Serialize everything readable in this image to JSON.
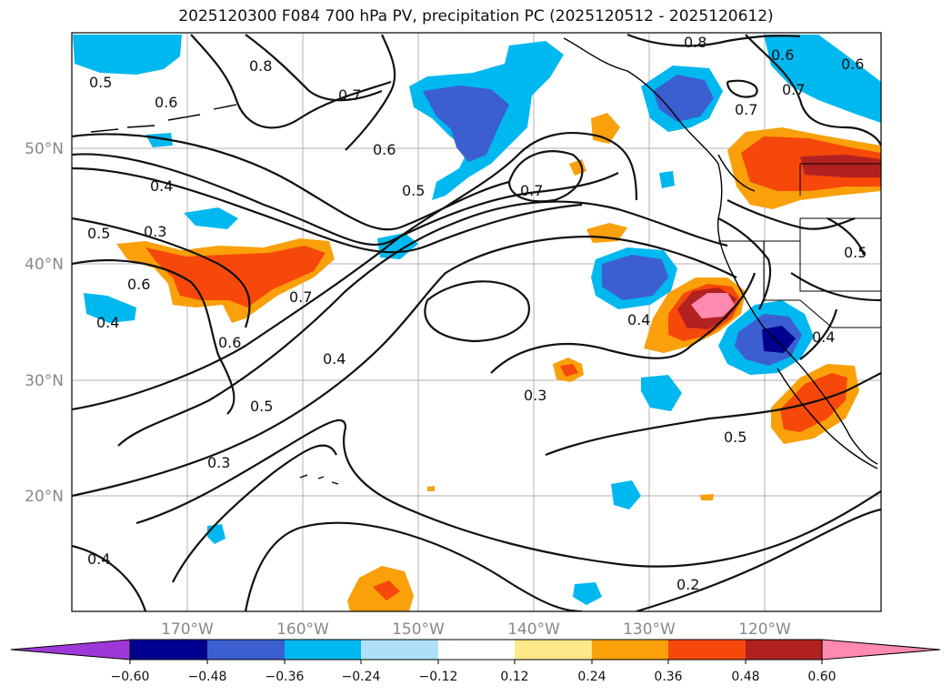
{
  "title": "2025120300 F084 700 hPa PV, precipitation PC (2025120512 - 2025120612)",
  "map": {
    "lat_range_deg": [
      10,
      60
    ],
    "lon_range_deg": [
      -180,
      -110
    ],
    "gridlines": true,
    "lat_labels": [
      "50°N",
      "40°N",
      "30°N",
      "20°N"
    ],
    "lon_labels": [
      "170°W",
      "160°W",
      "150°W",
      "140°W",
      "130°W",
      "120°W"
    ],
    "contour_labels": [
      "0.5",
      "0.6",
      "0.8",
      "0.7",
      "0.6",
      "0.5",
      "0.7",
      "0.4",
      "0.3",
      "0.5",
      "0.6",
      "0.7",
      "0.4",
      "0.6",
      "0.4",
      "0.5",
      "0.3",
      "0.3",
      "0.4",
      "0.5",
      "0.2",
      "0.4",
      "0.8",
      "0.6",
      "0.6",
      "0.7",
      "0.7",
      "0.4",
      "0.5"
    ],
    "colors": {
      "pos_1": "#fde88a",
      "pos_2": "#f9a00a",
      "pos_3": "#f6480a",
      "pos_4": "#b22121",
      "pos_5": "#ff8ab0",
      "neg_1": "#aee0f8",
      "neg_2": "#00b8f0",
      "neg_3": "#3b5fd0",
      "neg_4": "#000090",
      "neg_5": "#9f38d8"
    }
  },
  "colorbar": {
    "levels": [
      "−0.60",
      "−0.48",
      "−0.36",
      "−0.24",
      "−0.12",
      "0.12",
      "0.24",
      "0.36",
      "0.48",
      "0.60"
    ],
    "colors": [
      "#9f38d8",
      "#000090",
      "#3b5fd0",
      "#2d55c8",
      "#00b8f0",
      "#aee0f8",
      "#ffffff",
      "#fde88a",
      "#f9a00a",
      "#f6480a",
      "#b22121",
      "#ff8ab0"
    ]
  }
}
